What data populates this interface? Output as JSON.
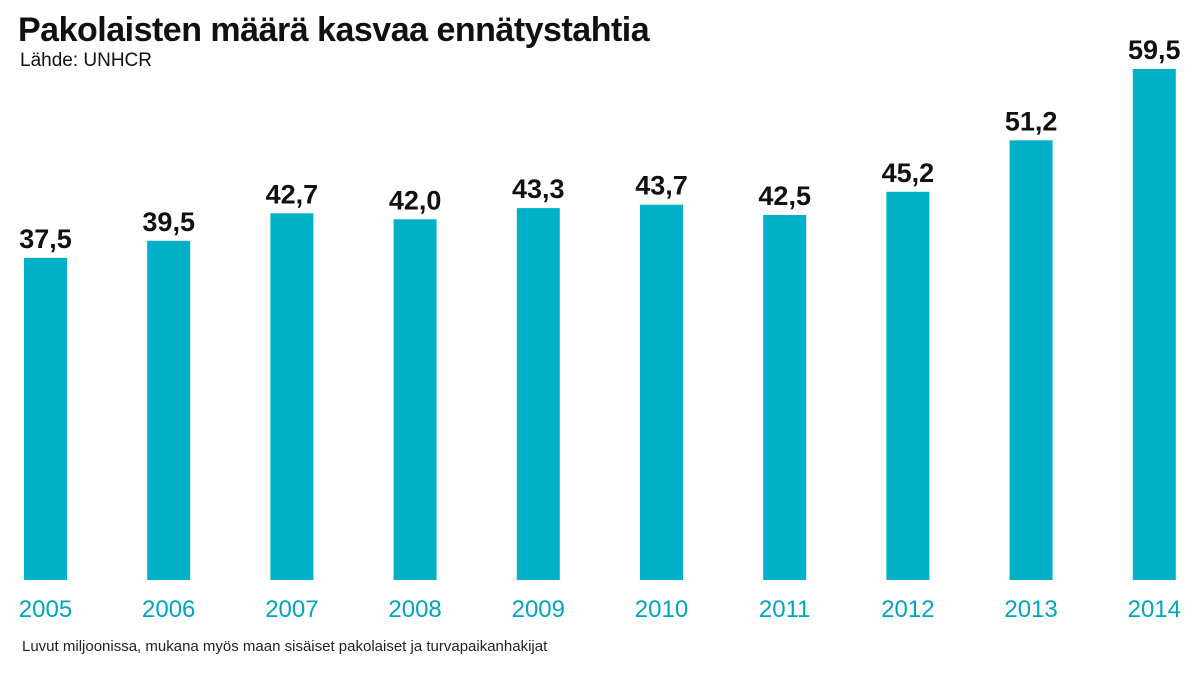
{
  "chart_data": {
    "type": "bar",
    "title": "Pakolaisten määrä kasvaa ennätystahtia",
    "subtitle": "Lähde: UNHCR",
    "categories": [
      "2005",
      "2006",
      "2007",
      "2008",
      "2009",
      "2010",
      "2011",
      "2012",
      "2013",
      "2014"
    ],
    "values": [
      37.5,
      39.5,
      42.7,
      42.0,
      43.3,
      43.7,
      42.5,
      45.2,
      51.2,
      59.5
    ],
    "value_labels": [
      "37,5",
      "39,5",
      "42,7",
      "42,0",
      "43,3",
      "43,7",
      "42,5",
      "45,2",
      "51,2",
      "59,5"
    ],
    "footnote": "Luvut miljoonissa, mukana myös maan sisäiset pakolaiset ja turvapaikanhakijat",
    "ylim": [
      0,
      59.5
    ],
    "grid": false,
    "legend": "none"
  },
  "colors": {
    "bar": "#00b0c6",
    "tick_label": "#00a4bb",
    "value_label": "#111111"
  }
}
